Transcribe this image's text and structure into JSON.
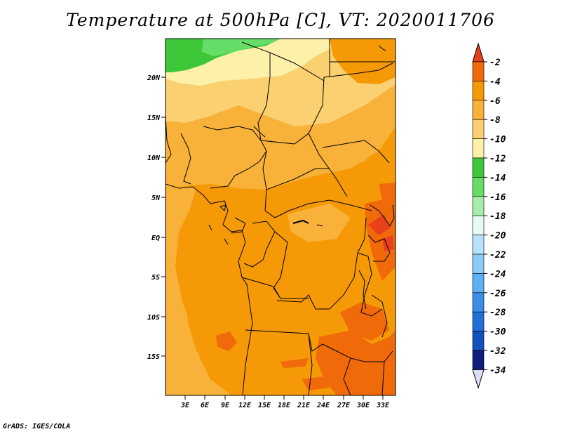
{
  "title": "Temperature at 500hPa [C], VT: 2020011706",
  "footer": "GrADS: IGES/COLA",
  "map": {
    "lat_labels": [
      "20N",
      "15N",
      "10N",
      "5N",
      "EQ",
      "5S",
      "10S",
      "15S"
    ],
    "lon_labels": [
      "3E",
      "6E",
      "9E",
      "12E",
      "15E",
      "18E",
      "21E",
      "24E",
      "27E",
      "30E",
      "33E"
    ]
  },
  "colorbar": {
    "labels": [
      "-2",
      "-4",
      "-6",
      "-8",
      "-10",
      "-12",
      "-14",
      "-16",
      "-18",
      "-20",
      "-22",
      "-24",
      "-26",
      "-28",
      "-30",
      "-32",
      "-34"
    ],
    "colors": [
      "#e8401a",
      "#f06a0a",
      "#f59a06",
      "#f8b23a",
      "#fbd070",
      "#fdf0a8",
      "#3cc838",
      "#66dd66",
      "#a8ecaa",
      "#e6fbf3",
      "#b8e2fb",
      "#8ccbf8",
      "#5db0f4",
      "#3a8fe8",
      "#236fd8",
      "#1450be",
      "#0d1e7c",
      "#dcdcf8"
    ],
    "top_arrow_color": "#e8401a",
    "bottom_arrow_color": "#dcdcf8"
  }
}
